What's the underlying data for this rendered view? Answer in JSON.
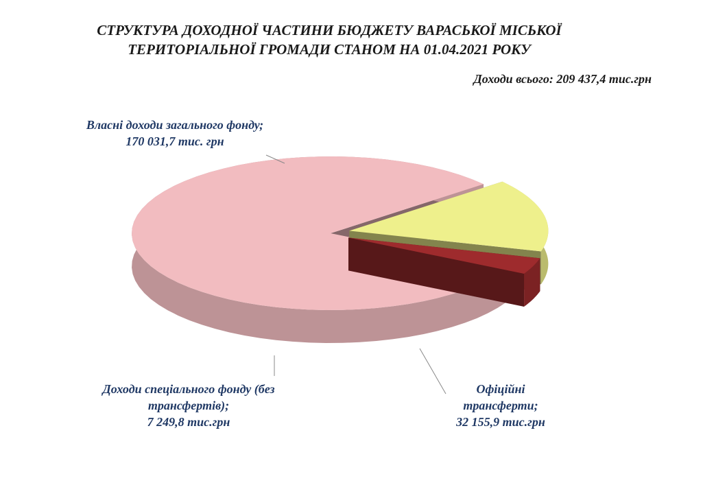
{
  "chart_data": {
    "type": "pie",
    "title": [
      "СТРУКТУРА ДОХОДНОЇ ЧАСТИНИ БЮДЖЕТУ ВАРАСЬКОЇ МІСЬКОЇ",
      "ТЕРИТОРІАЛЬНОЇ ГРОМАДИ СТАНОМ НА 01.04.2021 РОКУ"
    ],
    "subtitle": "Доходи всього: 209 437,4 тис.грн",
    "categories": [
      "Власні доходи загального фонду;",
      "Офіційні трансферти;",
      "Доходи спеціального фонду (без трансфертів);"
    ],
    "values": [
      170031.7,
      32155.9,
      7249.8
    ],
    "value_labels": [
      "170 031,7 тис. грн",
      "32 155,9 тис.грн",
      "7 249,8 тис.грн"
    ],
    "colors": [
      "#f2bcc0",
      "#eef08c",
      "#9e2b2d"
    ]
  }
}
